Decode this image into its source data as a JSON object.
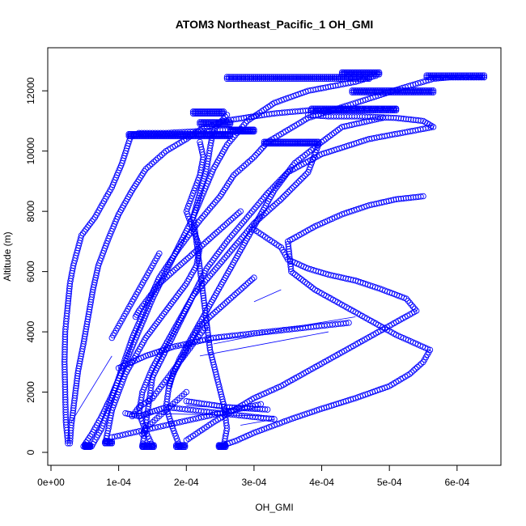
{
  "chart_data": {
    "type": "scatter",
    "title": "ATOM3 Northeast_Pacific_1 OH_GMI",
    "xlabel": "OH_GMI",
    "ylabel": "Altitude (m)",
    "xlim": [
      0,
      0.00066
    ],
    "ylim": [
      0,
      13000
    ],
    "x_ticks": [
      0,
      0.0001,
      0.0002,
      0.0003,
      0.0004,
      0.0005,
      0.0006
    ],
    "x_tick_labels": [
      "0e+00",
      "1e-04",
      "2e-04",
      "3e-04",
      "4e-04",
      "5e-04",
      "6e-04"
    ],
    "y_ticks": [
      0,
      2000,
      4000,
      6000,
      8000,
      10000,
      12000
    ],
    "y_tick_labels": [
      "0",
      "2000",
      "4000",
      "6000",
      "8000",
      "10000",
      "12000"
    ],
    "grid": false,
    "marker": "open-circle",
    "color": "#0000ff",
    "series": [
      {
        "x": [
          2.5e-05,
          2.2e-05,
          2.1e-05,
          2e-05,
          2.1e-05,
          2.4e-05,
          2.8e-05,
          3.3e-05,
          4.5e-05,
          6.5e-05,
          9e-05,
          0.000105,
          0.000118,
          0.00013,
          0.00015,
          0.00017,
          0.00021,
          0.00025,
          0.00028
        ],
        "y": [
          300,
          1000,
          2000,
          3000,
          4000,
          4700,
          5600,
          6200,
          7200,
          7800,
          8800,
          9600,
          10500,
          10600,
          10600,
          10600,
          10650,
          10700,
          10700
        ]
      },
      {
        "x": [
          2.8e-05,
          3e-05,
          3.5e-05,
          4e-05,
          4.8e-05,
          5.5e-05,
          6.2e-05,
          7e-05,
          8.5e-05,
          0.0001,
          0.00012,
          0.00014,
          0.00017,
          0.0002,
          0.00022,
          0.000255,
          0.00033,
          0.00038,
          0.000455,
          0.00051
        ],
        "y": [
          300,
          900,
          1800,
          2700,
          3600,
          4500,
          5400,
          6200,
          7100,
          7900,
          8700,
          9400,
          10000,
          10400,
          10700,
          11000,
          11250,
          11350,
          11400,
          11400
        ]
      },
      {
        "x": [
          6e-05,
          7.5e-05,
          9e-05,
          0.000105,
          0.00012,
          0.00014,
          0.00016,
          0.00019,
          0.00022,
          0.00025,
          0.00027,
          0.0003,
          0.00032,
          0.00035,
          0.00038,
          0.00045,
          0.00052,
          0.00055,
          0.000565,
          0.00059,
          0.00064
        ],
        "y": [
          200,
          800,
          1800,
          2800,
          3800,
          4800,
          5800,
          6800,
          7700,
          8500,
          9200,
          9800,
          10300,
          10700,
          11100,
          11600,
          12100,
          12300,
          12400,
          12450,
          12450
        ]
      },
      {
        "x": [
          4.8e-05,
          6e-05,
          7.5e-05,
          9e-05,
          0.000105,
          0.00012,
          0.000135,
          0.00015,
          0.00017,
          0.00019,
          0.00021,
          0.000225,
          0.00024,
          0.00026,
          0.00029,
          0.00033,
          0.00038,
          0.00045,
          0.00048
        ],
        "y": [
          200,
          600,
          1200,
          1900,
          2700,
          3500,
          4300,
          5100,
          6000,
          6900,
          7800,
          8600,
          9400,
          10200,
          11000,
          11600,
          12000,
          12300,
          12500
        ]
      },
      {
        "x": [
          0.000135,
          0.00014,
          0.000145,
          0.00015,
          0.00017,
          0.00019,
          0.00021,
          0.00023,
          0.00026,
          0.00029,
          0.00032,
          0.00035,
          0.0004,
          0.00047,
          0.000565,
          0.00055,
          0.00051,
          0.00046,
          0.00041,
          0.00038
        ],
        "y": [
          200,
          900,
          1700,
          2500,
          3400,
          4300,
          5200,
          6100,
          7000,
          7800,
          8600,
          9300,
          9900,
          10400,
          10800,
          11000,
          11100,
          11150,
          11150,
          11200
        ]
      },
      {
        "x": [
          0.00019,
          0.00018,
          0.00017,
          0.000175,
          0.00019,
          0.00021,
          0.00023,
          0.00025,
          0.00027,
          0.00029,
          0.00031,
          0.00033,
          0.00036,
          0.0004,
          0.00043,
          0.00047,
          0.00049
        ],
        "y": [
          200,
          800,
          1500,
          2300,
          3100,
          3900,
          4700,
          5500,
          6300,
          7100,
          7900,
          8700,
          9600,
          10300,
          10800,
          11000,
          11100
        ]
      },
      {
        "x": [
          0.000255,
          0.00026,
          0.000255,
          0.000245,
          0.000235,
          0.00023,
          0.000225,
          0.00022,
          0.000215,
          0.00021,
          0.00022,
          0.00023,
          0.000235,
          0.00024,
          0.00026
        ],
        "y": [
          200,
          800,
          1600,
          2500,
          3400,
          4300,
          5200,
          6100,
          7000,
          7800,
          8600,
          9400,
          10100,
          10700,
          11200
        ]
      },
      {
        "x": [
          0.00015,
          0.00014,
          0.00013,
          0.000135,
          0.00015,
          0.00017,
          0.00019,
          0.00021,
          0.00024,
          0.00027,
          0.0003,
          0.00034,
          0.00038,
          0.000395
        ],
        "y": [
          200,
          700,
          1300,
          2000,
          2800,
          3600,
          4400,
          5200,
          6000,
          6800,
          7600,
          8400,
          9300,
          10200
        ]
      },
      {
        "x": [
          8e-05,
          8.5e-05,
          9e-05,
          0.0001,
          0.00011,
          0.000125,
          0.00014,
          0.00016,
          0.00018,
          0.0002,
          0.000215,
          0.00022,
          0.00021,
          0.0002,
          0.00021,
          0.00022,
          0.000225,
          0.00022
        ],
        "y": [
          300,
          800,
          1400,
          2000,
          2600,
          3200,
          3800,
          4400,
          5000,
          5600,
          6200,
          6800,
          7400,
          8000,
          8600,
          9200,
          9800,
          10300
        ]
      },
      {
        "x": [
          0.00025,
          0.000275,
          0.0003,
          0.00033,
          0.00036,
          0.0004,
          0.00045,
          0.0005,
          0.00053,
          0.00055,
          0.00056,
          0.00051,
          0.00047,
          0.00043,
          0.00039,
          0.000355,
          0.00035,
          0.00039,
          0.00043,
          0.00047,
          0.00051,
          0.00055
        ],
        "y": [
          200,
          400,
          650,
          900,
          1150,
          1450,
          1800,
          2200,
          2600,
          3000,
          3400,
          3900,
          4400,
          4900,
          5400,
          6000,
          7000,
          7500,
          7900,
          8200,
          8400,
          8500
        ]
      },
      {
        "x": [
          0.0002,
          0.00022,
          0.00024,
          0.00027,
          0.0003,
          0.00034,
          0.00038,
          0.00042,
          0.00046,
          0.0005,
          0.00054,
          0.000525,
          0.00049,
          0.00045,
          0.00041,
          0.00038,
          0.00035,
          0.00034,
          0.00032,
          0.0003
        ],
        "y": [
          400,
          700,
          1000,
          1400,
          1800,
          2200,
          2700,
          3200,
          3700,
          4200,
          4700,
          5100,
          5400,
          5700,
          5900,
          6100,
          6400,
          6800,
          7100,
          7400
        ]
      },
      {
        "x": [
          0.0001,
          0.00012,
          0.00014,
          0.00016,
          0.00018,
          0.0002,
          0.00022,
          0.00024,
          0.00026,
          0.00028,
          0.0003,
          0.00032,
          0.00034,
          0.00036,
          0.00038,
          0.0004,
          0.00042,
          0.00044
        ],
        "y": [
          2800,
          3000,
          3200,
          3350,
          3500,
          3600,
          3700,
          3800,
          3850,
          3900,
          3950,
          4000,
          4050,
          4100,
          4150,
          4200,
          4250,
          4300
        ]
      },
      {
        "x": [
          0.00012,
          0.00013,
          0.00015,
          0.00016,
          0.00017,
          0.00018,
          0.00019,
          0.0002,
          0.00021,
          0.00022,
          0.00023
        ],
        "y": [
          1200,
          1500,
          1800,
          2100,
          2400,
          2700,
          3000,
          3300,
          3600,
          3900,
          4200
        ]
      },
      {
        "x": [
          0.00011,
          0.00012,
          0.00013,
          0.00015,
          0.00017,
          0.00019,
          0.00021,
          0.00023,
          0.00025,
          0.00027,
          0.00029,
          0.00031,
          0.00033
        ],
        "y": [
          1300,
          1250,
          1200,
          1350,
          1500,
          1450,
          1400,
          1350,
          1300,
          1250,
          1200,
          1150,
          1100
        ]
      },
      {
        "x": [
          0.0002,
          0.000215,
          0.00023,
          0.000245,
          0.00026,
          0.000275,
          0.00029,
          0.000305,
          0.00032
        ],
        "y": [
          1700,
          1650,
          1600,
          1550,
          1500,
          1480,
          1460,
          1440,
          1420
        ]
      },
      {
        "x": [
          9e-05,
          0.00011,
          0.00013,
          0.00015,
          0.00017,
          0.00019,
          0.00021,
          0.00023,
          0.00025,
          0.00027,
          0.00029,
          0.00031
        ],
        "y": [
          500,
          600,
          700,
          800,
          900,
          1000,
          1100,
          1200,
          1300,
          1400,
          1500,
          1600
        ]
      },
      {
        "x": [
          0.000135,
          0.00014,
          0.00015,
          0.00016,
          0.00017,
          0.00018,
          0.00019,
          0.0002
        ],
        "y": [
          600,
          800,
          1000,
          1200,
          1400,
          1600,
          1800,
          2000
        ]
      },
      {
        "x": [
          0.000125,
          0.00013,
          0.00014,
          0.00015,
          0.00016,
          0.00018,
          0.0002,
          0.00022,
          0.00024,
          0.00026,
          0.00028
        ],
        "y": [
          4500,
          4700,
          5000,
          5300,
          5600,
          6000,
          6400,
          6800,
          7200,
          7600,
          8000
        ]
      },
      {
        "x": [
          9e-05,
          0.0001,
          0.00011,
          0.00012,
          0.00013,
          0.00014,
          0.00015,
          0.00016
        ],
        "y": [
          3800,
          4200,
          4600,
          5000,
          5400,
          5800,
          6200,
          6600
        ]
      },
      {
        "x": [
          0.000175,
          0.00018,
          0.00019,
          0.0002,
          0.00021,
          0.00022,
          0.00024,
          0.00026,
          0.00028,
          0.0003
        ],
        "y": [
          2200,
          2600,
          3000,
          3400,
          3800,
          4200,
          4600,
          5000,
          5400,
          5800
        ]
      }
    ],
    "dense_runs": [
      {
        "x0": 0.000115,
        "x1": 0.000265,
        "y": 10500,
        "n": 80
      },
      {
        "x0": 0.000265,
        "x1": 0.0003,
        "y": 10650,
        "n": 20
      },
      {
        "x0": 0.00026,
        "x1": 0.00047,
        "y": 12400,
        "n": 70
      },
      {
        "x0": 0.00043,
        "x1": 0.000485,
        "y": 12550,
        "n": 25
      },
      {
        "x0": 0.000445,
        "x1": 0.000565,
        "y": 11950,
        "n": 45
      },
      {
        "x0": 0.000385,
        "x1": 0.00051,
        "y": 11350,
        "n": 45
      },
      {
        "x0": 0.000315,
        "x1": 0.000395,
        "y": 10250,
        "n": 35
      },
      {
        "x0": 0.00021,
        "x1": 0.000255,
        "y": 11250,
        "n": 20
      },
      {
        "x0": 0.00022,
        "x1": 0.000265,
        "y": 10900,
        "n": 20
      },
      {
        "x0": 0.000555,
        "x1": 0.00064,
        "y": 12450,
        "n": 30
      },
      {
        "x0": 5e-05,
        "x1": 5.8e-05,
        "y": 180,
        "n": 8
      },
      {
        "x0": 0.000135,
        "x1": 0.000152,
        "y": 180,
        "n": 10
      },
      {
        "x0": 0.000185,
        "x1": 0.000198,
        "y": 180,
        "n": 8
      },
      {
        "x0": 0.000248,
        "x1": 0.000258,
        "y": 180,
        "n": 7
      },
      {
        "x0": 8e-05,
        "x1": 9e-05,
        "y": 300,
        "n": 6
      }
    ],
    "connected_segments": [
      {
        "x": [
          3e-05,
          9e-05
        ],
        "y": [
          1000,
          3200
        ]
      },
      {
        "x": [
          0.00013,
          0.00033
        ],
        "y": [
          1300,
          1200
        ]
      },
      {
        "x": [
          0.0002,
          0.00031
        ],
        "y": [
          1550,
          1400
        ]
      },
      {
        "x": [
          0.00018,
          0.00045
        ],
        "y": [
          3500,
          4500
        ]
      },
      {
        "x": [
          0.00022,
          0.00041
        ],
        "y": [
          3200,
          4000
        ]
      },
      {
        "x": [
          0.00024,
          0.0004
        ],
        "y": [
          3600,
          4300
        ]
      },
      {
        "x": [
          0.0003,
          0.00034
        ],
        "y": [
          5000,
          5400
        ]
      },
      {
        "x": [
          0.00028,
          0.00033
        ],
        "y": [
          900,
          1100
        ]
      }
    ]
  }
}
